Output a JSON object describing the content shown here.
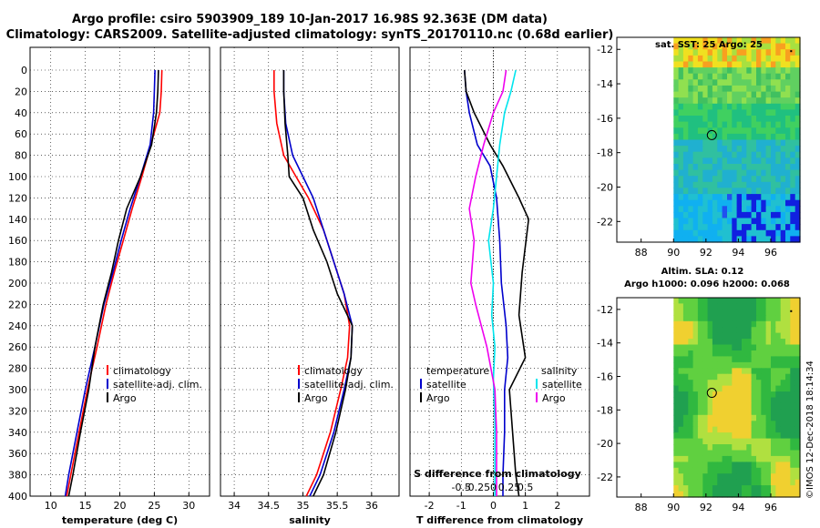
{
  "header": {
    "line1": "Argo profile: csiro 5903909_189 10-Jan-2017 16.98S 92.363E (DM data)",
    "line2": "Climatology: CARS2009. Satellite-adjusted climatology: synTS_20170110.nc (0.68d earlier)"
  },
  "colors": {
    "climatology": "#ff0000",
    "satellite": "#0000cc",
    "argo": "#000000",
    "sat_salinity": "#00e5ee",
    "argo_salinity": "#ee00ee"
  },
  "chart_data": [
    {
      "type": "line",
      "name": "temperature",
      "xlabel": "temperature (deg C)",
      "xlim": [
        7,
        33
      ],
      "xticks": [
        10,
        15,
        20,
        25,
        30
      ],
      "ylim": [
        0,
        400
      ],
      "yticks": [
        0,
        20,
        40,
        60,
        80,
        100,
        120,
        140,
        160,
        180,
        200,
        220,
        240,
        260,
        280,
        300,
        320,
        340,
        360,
        380,
        400
      ],
      "legend": [
        "climatology",
        "satellite-adj. clim.",
        "Argo"
      ],
      "series": [
        {
          "name": "climatology",
          "color": "#ff0000",
          "x": [
            26.1,
            26.0,
            25.8,
            24.5,
            23.2,
            21.8,
            20.5,
            19.2,
            18.0,
            16.7,
            15.3,
            14.1,
            12.9,
            12.3
          ],
          "y": [
            0,
            20,
            40,
            70,
            100,
            130,
            160,
            190,
            220,
            260,
            300,
            340,
            380,
            400
          ]
        },
        {
          "name": "satellite-adj. clim.",
          "color": "#0000cc",
          "x": [
            25.1,
            25.0,
            24.9,
            24.4,
            23.0,
            21.5,
            20.2,
            19.0,
            17.7,
            16.4,
            15.0,
            13.8,
            12.6,
            12.1
          ],
          "y": [
            0,
            20,
            40,
            70,
            100,
            130,
            160,
            190,
            220,
            260,
            300,
            340,
            380,
            400
          ]
        },
        {
          "name": "Argo",
          "color": "#000000",
          "x": [
            25.6,
            25.5,
            25.3,
            24.6,
            23.0,
            21.0,
            19.8,
            18.8,
            17.6,
            16.4,
            15.5,
            14.3,
            13.2,
            12.6
          ],
          "y": [
            0,
            20,
            40,
            70,
            100,
            130,
            160,
            190,
            220,
            260,
            300,
            340,
            380,
            400
          ]
        }
      ]
    },
    {
      "type": "line",
      "name": "salinity",
      "xlabel": "salinity",
      "xlim": [
        33.8,
        36.4
      ],
      "xticks": [
        34,
        34.5,
        35,
        35.5,
        36
      ],
      "ylim": [
        0,
        400
      ],
      "legend": [
        "climatology",
        "satellite-adj. clim.",
        "Argo"
      ],
      "series": [
        {
          "name": "climatology",
          "color": "#ff0000",
          "x": [
            34.58,
            34.58,
            34.62,
            34.72,
            34.9,
            35.08,
            35.3,
            35.45,
            35.6,
            35.68,
            35.65,
            35.55,
            35.4,
            35.2,
            35.05
          ],
          "y": [
            0,
            20,
            50,
            80,
            100,
            120,
            150,
            180,
            210,
            240,
            270,
            300,
            340,
            380,
            400
          ]
        },
        {
          "name": "satellite-adj. clim.",
          "color": "#0000cc",
          "x": [
            34.72,
            34.72,
            34.75,
            34.85,
            35.0,
            35.15,
            35.3,
            35.45,
            35.6,
            35.72,
            35.7,
            35.6,
            35.45,
            35.25,
            35.1
          ],
          "y": [
            0,
            20,
            50,
            80,
            100,
            120,
            150,
            180,
            210,
            240,
            270,
            300,
            340,
            380,
            400
          ]
        },
        {
          "name": "Argo",
          "color": "#000000",
          "x": [
            34.72,
            34.72,
            34.74,
            34.78,
            34.8,
            35.0,
            35.15,
            35.35,
            35.5,
            35.72,
            35.7,
            35.62,
            35.48,
            35.3,
            35.15
          ],
          "y": [
            0,
            20,
            50,
            80,
            100,
            120,
            150,
            180,
            210,
            240,
            270,
            300,
            340,
            380,
            400
          ]
        }
      ]
    },
    {
      "type": "line",
      "name": "difference",
      "xlabel": "T difference from climatology",
      "xlim": [
        -2.6,
        3.0
      ],
      "xticks": [
        -2,
        -1,
        0,
        1,
        2
      ],
      "top_axis_label": "S difference from climatology",
      "top_ticks": [
        "-0.5",
        "-0.25",
        "0",
        "0.25",
        "0.5"
      ],
      "ylim": [
        0,
        400
      ],
      "legend_left_title": "temperature",
      "legend_right_title": "salinity",
      "legend": [
        "satellite",
        "Argo",
        "satellite",
        "Argo"
      ],
      "series": [
        {
          "name": "T satellite",
          "color": "#0000cc",
          "x": [
            -0.9,
            -0.85,
            -0.75,
            -0.5,
            -0.1,
            0.1,
            0.2,
            0.25,
            0.4,
            0.45,
            0.35,
            0.35,
            0.3,
            0.3
          ],
          "y": [
            0,
            20,
            40,
            70,
            90,
            120,
            160,
            200,
            240,
            270,
            300,
            340,
            380,
            400
          ]
        },
        {
          "name": "T Argo",
          "color": "#000000",
          "x": [
            -0.9,
            -0.85,
            -0.6,
            -0.1,
            0.3,
            0.8,
            1.1,
            0.9,
            0.8,
            1.0,
            0.5,
            0.6,
            0.7,
            0.8
          ],
          "y": [
            0,
            20,
            40,
            70,
            90,
            120,
            140,
            190,
            230,
            270,
            300,
            340,
            380,
            400
          ]
        },
        {
          "name": "S satellite",
          "color": "#00e5ee",
          "x": [
            0.7,
            0.55,
            0.35,
            0.2,
            0.1,
            0.0,
            -0.15,
            0.0,
            -0.05,
            0.05,
            0.0,
            0.05,
            0.05,
            0.05
          ],
          "y": [
            0,
            20,
            40,
            70,
            100,
            130,
            160,
            200,
            230,
            260,
            290,
            330,
            370,
            400
          ]
        },
        {
          "name": "S Argo",
          "color": "#ee00ee",
          "x": [
            0.4,
            0.3,
            0.0,
            -0.3,
            -0.55,
            -0.75,
            -0.6,
            -0.7,
            -0.55,
            -0.2,
            0.05,
            0.1,
            0.1,
            0.1
          ],
          "y": [
            0,
            20,
            40,
            70,
            100,
            130,
            160,
            200,
            220,
            260,
            300,
            340,
            380,
            400
          ]
        }
      ]
    }
  ],
  "maps": {
    "sst": {
      "title": "sat. SST: 25 Argo: 25",
      "xticks": [
        "88",
        "90",
        "92",
        "94",
        "96"
      ],
      "yticks": [
        "-12",
        "-14",
        "-16",
        "-18",
        "-20",
        "-22"
      ]
    },
    "sla": {
      "title_line1": "Altim. SLA: 0.12",
      "title_line2": "Argo h1000: 0.096 h2000: 0.068",
      "xticks": [
        "88",
        "90",
        "92",
        "94",
        "96"
      ],
      "yticks": [
        "-12",
        "-14",
        "-16",
        "-18",
        "-20",
        "-22"
      ]
    }
  },
  "stamp": "©IMOS 12-Dec-2018 18:14:34"
}
